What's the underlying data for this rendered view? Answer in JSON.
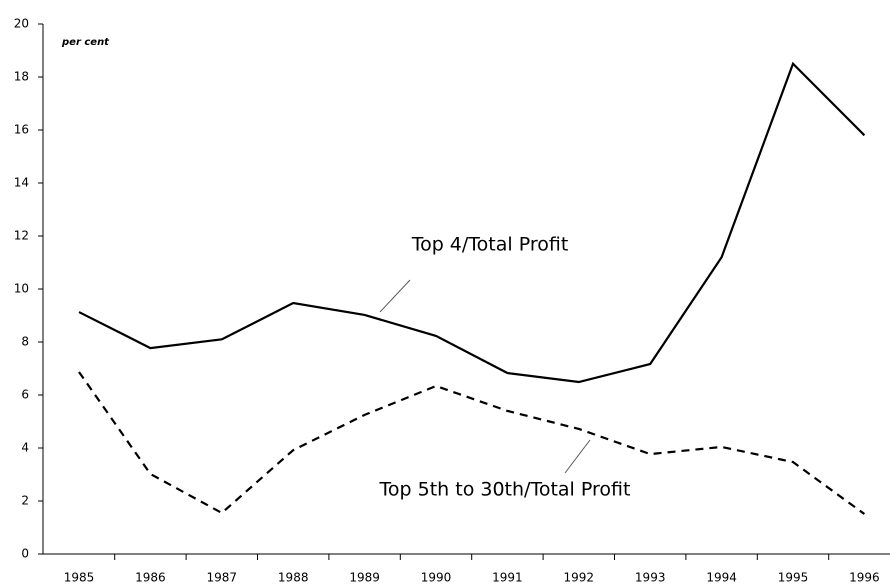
{
  "chart_data": {
    "type": "line",
    "y_unit_label": "per cent",
    "categories": [
      "1985",
      "1986",
      "1987",
      "1988",
      "1989",
      "1990",
      "1991",
      "1992",
      "1993",
      "1994",
      "1995",
      "1996"
    ],
    "series": [
      {
        "name": "Top 4/Total Profit",
        "color": "#000000",
        "dash": "solid",
        "values": [
          9.13,
          7.77,
          8.1,
          9.47,
          9.02,
          8.23,
          6.83,
          6.49,
          7.17,
          11.2,
          18.5,
          15.8
        ]
      },
      {
        "name": "Top 5th to 30th/Total Profit",
        "color": "#000000",
        "dash": "dashed",
        "values": [
          6.87,
          3.02,
          1.55,
          3.92,
          5.25,
          6.34,
          5.4,
          4.72,
          3.77,
          4.04,
          3.47,
          1.51
        ]
      }
    ],
    "ylim": [
      0,
      20
    ],
    "yticks": [
      0,
      2,
      4,
      6,
      8,
      10,
      12,
      14,
      16,
      18,
      20
    ],
    "grid": false
  }
}
